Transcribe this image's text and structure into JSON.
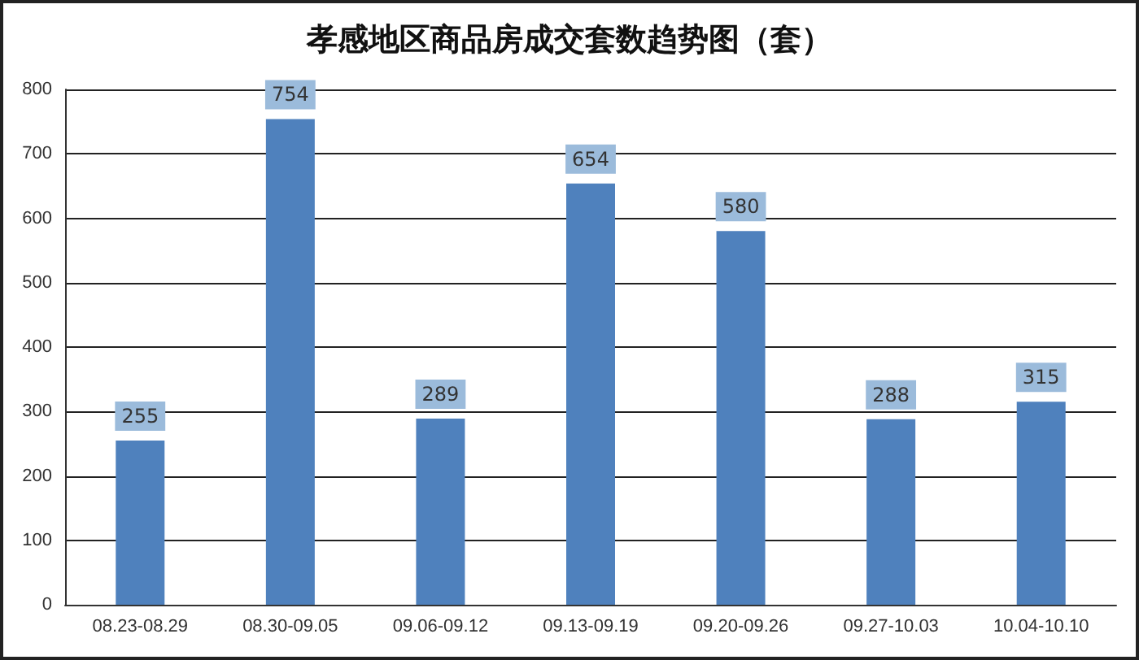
{
  "chart_data": {
    "type": "bar",
    "title": "孝感地区商品房成交套数趋势图（套）",
    "categories": [
      "08.23-08.29",
      "08.30-09.05",
      "09.06-09.12",
      "09.13-09.19",
      "09.20-09.26",
      "09.27-10.03",
      "10.04-10.10"
    ],
    "values": [
      255,
      754,
      289,
      654,
      580,
      288,
      315
    ],
    "color": "#4f81bd",
    "ylim": [
      0,
      800
    ],
    "yticks": [
      0,
      100,
      200,
      300,
      400,
      500,
      600,
      700,
      800
    ],
    "grid": "y",
    "data_labels": true
  }
}
